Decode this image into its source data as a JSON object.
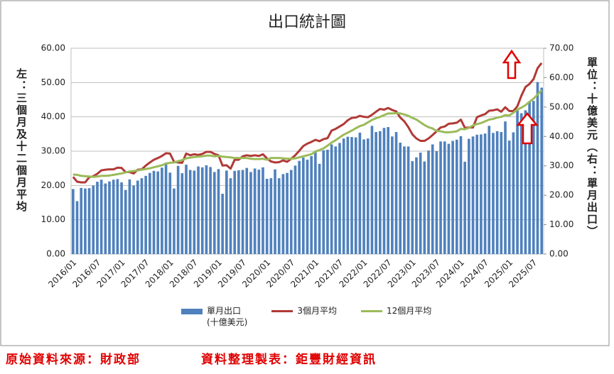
{
  "chart_data": {
    "type": "bar-line",
    "title": "出口統計圖",
    "y_axis_label": "左：三個月及十二個月平均",
    "y2_axis_label": "單位：十億美元（右：單月出口）",
    "source": "原始資料來源：財政部",
    "compiled_by": "資料整理製表：鉅豐財經資訊",
    "grid": true,
    "ylim": [
      0,
      60
    ],
    "yticks": [
      {
        "value": 0,
        "label": "0.00"
      },
      {
        "value": 10,
        "label": "10.00"
      },
      {
        "value": 20,
        "label": "20.00"
      },
      {
        "value": 30,
        "label": "30.00"
      },
      {
        "value": 40,
        "label": "40.00"
      },
      {
        "value": 50,
        "label": "50.00"
      },
      {
        "value": 60,
        "label": "60.00"
      }
    ],
    "y2lim": [
      0,
      70
    ],
    "y2ticks": [
      {
        "value": 0,
        "label": "0.00"
      },
      {
        "value": 10,
        "label": "10.00"
      },
      {
        "value": 20,
        "label": "20.00"
      },
      {
        "value": 30,
        "label": "30.00"
      },
      {
        "value": 40,
        "label": "40.00"
      },
      {
        "value": 50,
        "label": "50.00"
      },
      {
        "value": 60,
        "label": "60.00"
      },
      {
        "value": 70,
        "label": "70.00"
      }
    ],
    "categories": [
      "2016/01",
      null,
      null,
      null,
      null,
      null,
      "2016/07",
      null,
      null,
      null,
      null,
      null,
      "2017/01",
      null,
      null,
      null,
      null,
      null,
      "2017/07",
      null,
      null,
      null,
      null,
      null,
      "2018/01",
      null,
      null,
      null,
      null,
      null,
      "2018/07",
      null,
      null,
      null,
      null,
      null,
      "2019/01",
      null,
      null,
      null,
      null,
      null,
      "2019/07",
      null,
      null,
      null,
      null,
      null,
      "2020/01",
      null,
      null,
      null,
      null,
      null,
      "2020/07",
      null,
      null,
      null,
      null,
      null,
      "2021/01",
      null,
      null,
      null,
      null,
      null,
      "2021/07",
      null,
      null,
      null,
      null,
      null,
      "2022/01",
      null,
      null,
      null,
      null,
      null,
      "2022/07",
      null,
      null,
      null,
      null,
      null,
      "2023/01",
      null,
      null,
      null,
      null,
      null,
      "2023/07",
      null,
      null,
      null,
      null,
      null,
      "2024/01",
      null,
      null,
      null,
      null,
      null,
      "2024/07",
      null,
      null,
      null,
      null,
      null,
      "2025/01",
      null,
      null,
      null,
      null,
      null,
      "2025/07",
      null,
      null
    ],
    "series": [
      {
        "name": "單月出口\n(十億美元)",
        "type": "bar",
        "axis": "y2",
        "color": "#4f81bd",
        "values": [
          22.1,
          18.0,
          22.5,
          22.3,
          22.4,
          23.3,
          24.6,
          25.3,
          24.0,
          24.7,
          25.3,
          25.5,
          24.4,
          21.8,
          25.4,
          23.3,
          25.0,
          25.8,
          26.6,
          27.6,
          28.3,
          28.1,
          29.4,
          30.7,
          27.7,
          22.3,
          30.0,
          27.5,
          30.4,
          28.6,
          28.4,
          29.8,
          29.5,
          30.2,
          29.6,
          27.9,
          28.9,
          20.5,
          28.4,
          25.8,
          28.3,
          28.5,
          28.6,
          29.3,
          27.9,
          29.1,
          28.7,
          29.5,
          25.6,
          25.8,
          28.8,
          25.8,
          27.2,
          27.6,
          28.6,
          30.1,
          31.7,
          32.8,
          32.1,
          33.3,
          34.6,
          30.7,
          35.3,
          35.5,
          37.3,
          36.6,
          37.8,
          39.3,
          39.9,
          39.8,
          39.7,
          41.3,
          39.0,
          39.3,
          43.6,
          41.5,
          41.8,
          42.9,
          43.2,
          40.0,
          41.5,
          37.9,
          36.6,
          36.6,
          31.6,
          32.9,
          34.5,
          31.5,
          35.2,
          37.3,
          35.0,
          38.3,
          38.3,
          37.5,
          38.5,
          38.9,
          40.1,
          31.4,
          39.2,
          40.0,
          40.6,
          40.7,
          41.0,
          43.6,
          41.2,
          41.8,
          41.5,
          45.1,
          38.6,
          41.4,
          49.3,
          47.9,
          48.9,
          51.9,
          52.1,
          58.5,
          56.6
        ]
      },
      {
        "name": "3個月平均",
        "type": "line",
        "color": "#b03a36",
        "values": [
          22.5,
          21.1,
          20.9,
          20.9,
          22.4,
          22.7,
          23.4,
          24.4,
          24.6,
          24.7,
          24.7,
          25.2,
          25.1,
          23.9,
          23.9,
          23.5,
          24.6,
          24.7,
          25.8,
          26.7,
          27.5,
          28.0,
          28.6,
          29.4,
          29.3,
          26.9,
          26.7,
          26.6,
          29.3,
          28.8,
          29.1,
          28.9,
          29.2,
          29.8,
          29.8,
          29.2,
          28.8,
          25.8,
          25.9,
          24.9,
          27.5,
          27.5,
          28.5,
          28.8,
          28.6,
          28.8,
          28.6,
          29.1,
          27.9,
          27.0,
          26.7,
          26.8,
          27.3,
          26.9,
          27.8,
          28.8,
          30.1,
          31.5,
          32.2,
          32.7,
          33.3,
          32.9,
          33.5,
          33.8,
          36.0,
          36.5,
          37.2,
          37.9,
          39.0,
          39.7,
          39.8,
          40.3,
          40.0,
          39.9,
          40.6,
          41.5,
          42.3,
          42.1,
          42.6,
          42.0,
          41.6,
          39.8,
          38.7,
          37.0,
          34.9,
          33.7,
          33.0,
          33.0,
          33.7,
          34.7,
          35.8,
          36.9,
          37.2,
          38.0,
          38.1,
          38.3,
          39.2,
          36.8,
          36.9,
          36.9,
          39.9,
          40.4,
          40.8,
          41.8,
          41.9,
          42.2,
          41.5,
          42.8,
          41.7,
          41.7,
          43.1,
          46.2,
          48.7,
          49.6,
          51.0,
          54.2,
          55.7
        ]
      },
      {
        "name": "12個月平均",
        "type": "line",
        "color": "#9bbb59",
        "values": [
          23.2,
          23.1,
          22.8,
          22.7,
          22.6,
          22.5,
          22.6,
          22.8,
          22.8,
          22.9,
          23.1,
          23.3,
          23.5,
          23.8,
          24.1,
          24.2,
          24.4,
          24.6,
          24.8,
          25.0,
          25.3,
          25.6,
          25.9,
          26.4,
          26.6,
          26.7,
          27.1,
          27.4,
          27.9,
          28.1,
          28.3,
          28.4,
          28.5,
          28.7,
          28.7,
          28.5,
          28.6,
          28.4,
          28.3,
          28.2,
          28.0,
          28.0,
          28.0,
          28.0,
          27.8,
          27.7,
          27.7,
          27.8,
          27.5,
          28.0,
          28.0,
          28.0,
          27.9,
          27.8,
          27.8,
          27.9,
          28.2,
          28.5,
          28.8,
          29.1,
          29.9,
          30.3,
          30.8,
          31.6,
          32.5,
          33.2,
          34.0,
          34.8,
          35.4,
          36.0,
          36.7,
          37.3,
          37.7,
          38.4,
          39.1,
          39.6,
          40.0,
          40.5,
          41.0,
          41.0,
          41.1,
          41.0,
          40.7,
          40.3,
          39.7,
          39.2,
          38.4,
          37.6,
          37.0,
          36.6,
          35.9,
          35.8,
          35.5,
          35.5,
          35.6,
          35.8,
          36.5,
          36.4,
          36.8,
          37.5,
          37.9,
          38.2,
          38.7,
          39.2,
          39.4,
          39.8,
          40.0,
          40.5,
          40.4,
          41.2,
          42.1,
          42.7,
          43.4,
          44.4,
          45.3,
          46.5,
          47.8
        ]
      }
    ]
  }
}
